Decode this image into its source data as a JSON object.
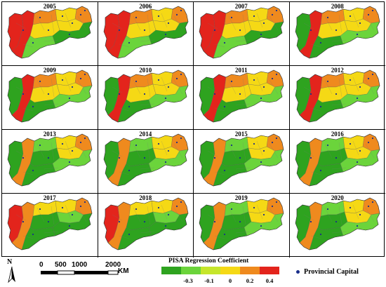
{
  "panels": [
    {
      "year": "2005",
      "scheme": "redwest"
    },
    {
      "year": "2006",
      "scheme": "redwest"
    },
    {
      "year": "2007",
      "scheme": "redwest"
    },
    {
      "year": "2008",
      "scheme": "mixed"
    },
    {
      "year": "2009",
      "scheme": "mixed"
    },
    {
      "year": "2010",
      "scheme": "mixed"
    },
    {
      "year": "2011",
      "scheme": "mixed"
    },
    {
      "year": "2012",
      "scheme": "mixed"
    },
    {
      "year": "2013",
      "scheme": "green"
    },
    {
      "year": "2014",
      "scheme": "green"
    },
    {
      "year": "2015",
      "scheme": "green"
    },
    {
      "year": "2016",
      "scheme": "green"
    },
    {
      "year": "2017",
      "scheme": "greenwest"
    },
    {
      "year": "2018",
      "scheme": "greenwest"
    },
    {
      "year": "2019",
      "scheme": "green"
    },
    {
      "year": "2020",
      "scheme": "green"
    }
  ],
  "north_label": "N",
  "scale": {
    "ticks": [
      "0",
      "500",
      "1000",
      "2000"
    ],
    "unit": "KM"
  },
  "legend": {
    "title": "PISA Regression Coefficient",
    "ticks": [
      "-0.3",
      "-0.1",
      "0",
      "0.2",
      "0.4"
    ],
    "colors": [
      "#2ea31f",
      "#6bd43b",
      "#c6e62b",
      "#f5d915",
      "#ef8a1e",
      "#e3241c"
    ]
  },
  "capital_label": "Provincial Capital",
  "colors": {
    "red": "#e3241c",
    "orange": "#ef8a1e",
    "yellow": "#f5d915",
    "lightgreen": "#6bd43b",
    "green": "#2ea31f",
    "capital": "#1a2f8a"
  }
}
